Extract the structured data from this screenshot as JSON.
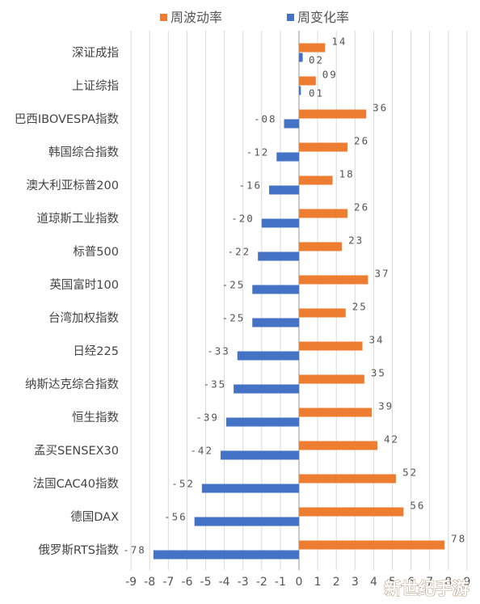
{
  "chart_data": {
    "type": "bar",
    "orientation": "horizontal",
    "legend": {
      "position": "top"
    },
    "categories": [
      "深证成指",
      "上证综指",
      "巴西IBOVESPA指数",
      "韩国综合指数",
      "澳大利亚标普200",
      "道琼斯工业指数",
      "标普500",
      "英国富时100",
      "台湾加权指数",
      "日经225",
      "纳斯达克综合指数",
      "恒生指数",
      "孟买SENSEX30",
      "法国CAC40指数",
      "德国DAX",
      "俄罗斯RTS指数"
    ],
    "series": [
      {
        "name": "周波动率",
        "color": "#ED7D31",
        "values": [
          1.4,
          0.9,
          3.6,
          2.6,
          1.8,
          2.6,
          2.3,
          3.7,
          2.5,
          3.4,
          3.5,
          3.9,
          4.2,
          5.2,
          5.6,
          7.8
        ],
        "labels": [
          "14",
          "09",
          "36",
          "26",
          "18",
          "26",
          "23",
          "37",
          "25",
          "34",
          "35",
          "39",
          "42",
          "52",
          "56",
          "78"
        ]
      },
      {
        "name": "周变化率",
        "color": "#4472C4",
        "values": [
          0.2,
          0.1,
          -0.8,
          -1.2,
          -1.6,
          -2.0,
          -2.2,
          -2.5,
          -2.5,
          -3.3,
          -3.5,
          -3.9,
          -4.2,
          -5.2,
          -5.6,
          -7.8
        ],
        "labels": [
          "02",
          "01",
          "-08",
          "-12",
          "-16",
          "-20",
          "-22",
          "-25",
          "-25",
          "-33",
          "-35",
          "-39",
          "-42",
          "-52",
          "-56",
          "-78"
        ]
      }
    ],
    "xlim": [
      -9,
      9
    ],
    "ticks": [
      "-9",
      "-8",
      "-7",
      "-6",
      "-5",
      "-4",
      "-3",
      "-2",
      "-1",
      "0",
      "1",
      "2",
      "3",
      "4",
      "5",
      "6",
      "7",
      "8",
      "9"
    ],
    "grid": "vertical"
  },
  "watermark": "新世纪手游"
}
